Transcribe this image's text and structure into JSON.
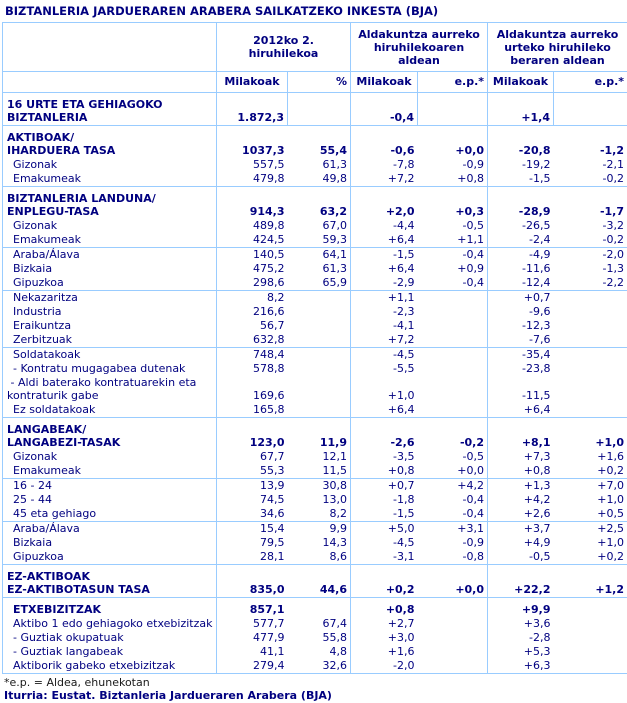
{
  "title": "BIZTANLERIA JARDUERAREN ARABERA SAILKATZEKO INKESTA (BJA)",
  "colors": {
    "text": "#000080",
    "grid": "#99CCFF",
    "background": "#FFFFFF",
    "footnote": "#1A1A1A"
  },
  "header": {
    "groups": [
      {
        "label": "2012ko 2.\nhiruhilekoa",
        "sub": [
          "Milakoak",
          "%"
        ]
      },
      {
        "label": "Aldakuntza aurreko\nhiruhilekoaren aldean",
        "sub": [
          "Milakoak",
          "e.p.*"
        ]
      },
      {
        "label": "Aldakuntza aurreko\nurteko hiruhileko\nberaren aldean",
        "sub": [
          "Milakoak",
          "e.p.*"
        ]
      }
    ]
  },
  "rows": [
    {
      "label": "16 URTE ETA GEHIAGOKO\nBIZTANLERIA",
      "indent": 0,
      "bold": true,
      "sep": false,
      "hdr": true,
      "cells": [
        "1.872,3",
        "",
        "-0,4",
        "",
        "+1,4",
        ""
      ]
    },
    {
      "label": "AKTIBOAK/\nIHARDUERA TASA",
      "indent": 0,
      "bold": true,
      "sep": true,
      "hdr": false,
      "cells": [
        "1037,3",
        "55,4",
        "-0,6",
        "+0,0",
        "-20,8",
        "-1,2"
      ]
    },
    {
      "label": "Gizonak",
      "indent": 1,
      "bold": false,
      "sep": false,
      "hdr": false,
      "cells": [
        "557,5",
        "61,3",
        "-7,8",
        "-0,9",
        "-19,2",
        "-2,1"
      ]
    },
    {
      "label": "Emakumeak",
      "indent": 1,
      "bold": false,
      "sep": false,
      "hdr": false,
      "cells": [
        "479,8",
        "49,8",
        "+7,2",
        "+0,8",
        "-1,5",
        "-0,2"
      ]
    },
    {
      "label": "BIZTANLERIA LANDUNA/\nENPLEGU-TASA",
      "indent": 0,
      "bold": true,
      "sep": true,
      "hdr": false,
      "cells": [
        "914,3",
        "63,2",
        "+2,0",
        "+0,3",
        "-28,9",
        "-1,7"
      ]
    },
    {
      "label": "Gizonak",
      "indent": 1,
      "bold": false,
      "sep": false,
      "hdr": false,
      "cells": [
        "489,8",
        "67,0",
        "-4,4",
        "-0,5",
        "-26,5",
        "-3,2"
      ]
    },
    {
      "label": "Emakumeak",
      "indent": 1,
      "bold": false,
      "sep": false,
      "hdr": false,
      "cells": [
        "424,5",
        "59,3",
        "+6,4",
        "+1,1",
        "-2,4",
        "-0,2"
      ]
    },
    {
      "label": "Araba/Álava",
      "indent": 1,
      "bold": false,
      "sep": true,
      "hdr": false,
      "cells": [
        "140,5",
        "64,1",
        "-1,5",
        "-0,4",
        "-4,9",
        "-2,0"
      ]
    },
    {
      "label": "Bizkaia",
      "indent": 1,
      "bold": false,
      "sep": false,
      "hdr": false,
      "cells": [
        "475,2",
        "61,3",
        "+6,4",
        "+0,9",
        "-11,6",
        "-1,3"
      ]
    },
    {
      "label": "Gipuzkoa",
      "indent": 1,
      "bold": false,
      "sep": false,
      "hdr": false,
      "cells": [
        "298,6",
        "65,9",
        "-2,9",
        "-0,4",
        "-12,4",
        "-2,2"
      ]
    },
    {
      "label": "Nekazaritza",
      "indent": 1,
      "bold": false,
      "sep": true,
      "hdr": false,
      "cells": [
        "8,2",
        "",
        "+1,1",
        "",
        "+0,7",
        ""
      ]
    },
    {
      "label": "Industria",
      "indent": 1,
      "bold": false,
      "sep": false,
      "hdr": false,
      "cells": [
        "216,6",
        "",
        "-2,3",
        "",
        "-9,6",
        ""
      ]
    },
    {
      "label": "Eraikuntza",
      "indent": 1,
      "bold": false,
      "sep": false,
      "hdr": false,
      "cells": [
        "56,7",
        "",
        "-4,1",
        "",
        "-12,3",
        ""
      ]
    },
    {
      "label": "Zerbitzuak",
      "indent": 1,
      "bold": false,
      "sep": false,
      "hdr": false,
      "cells": [
        "632,8",
        "",
        "+7,2",
        "",
        "-7,6",
        ""
      ]
    },
    {
      "label": "Soldatakoak",
      "indent": 1,
      "bold": false,
      "sep": true,
      "hdr": false,
      "cells": [
        "748,4",
        "",
        "-4,5",
        "",
        "-35,4",
        ""
      ]
    },
    {
      "label": "- Kontratu mugagabea dutenak",
      "indent": 1,
      "bold": false,
      "sep": false,
      "hdr": false,
      "cells": [
        "578,8",
        "",
        "-5,5",
        "",
        "-23,8",
        ""
      ]
    },
    {
      "label": " - Aldi baterako kontratuarekin eta\nkontraturik gabe",
      "indent": 0,
      "bold": false,
      "sep": false,
      "hdr": false,
      "cells": [
        "169,6",
        "",
        "+1,0",
        "",
        "-11,5",
        ""
      ]
    },
    {
      "label": "Ez soldatakoak",
      "indent": 1,
      "bold": false,
      "sep": false,
      "hdr": false,
      "cells": [
        "165,8",
        "",
        "+6,4",
        "",
        "+6,4",
        ""
      ]
    },
    {
      "label": "LANGABEAK/\nLANGABEZI-TASAK",
      "indent": 0,
      "bold": true,
      "sep": true,
      "hdr": false,
      "cells": [
        "123,0",
        "11,9",
        "-2,6",
        "-0,2",
        "+8,1",
        "+1,0"
      ]
    },
    {
      "label": "Gizonak",
      "indent": 1,
      "bold": false,
      "sep": false,
      "hdr": false,
      "cells": [
        "67,7",
        "12,1",
        "-3,5",
        "-0,5",
        "+7,3",
        "+1,6"
      ]
    },
    {
      "label": "Emakumeak",
      "indent": 1,
      "bold": false,
      "sep": false,
      "hdr": false,
      "cells": [
        "55,3",
        "11,5",
        "+0,8",
        "+0,0",
        "+0,8",
        "+0,2"
      ]
    },
    {
      "label": "16 - 24",
      "indent": 1,
      "bold": false,
      "sep": true,
      "hdr": false,
      "cells": [
        "13,9",
        "30,8",
        "+0,7",
        "+4,2",
        "+1,3",
        "+7,0"
      ]
    },
    {
      "label": "25 - 44",
      "indent": 1,
      "bold": false,
      "sep": false,
      "hdr": false,
      "cells": [
        "74,5",
        "13,0",
        "-1,8",
        "-0,4",
        "+4,2",
        "+1,0"
      ]
    },
    {
      "label": "45 eta gehiago",
      "indent": 1,
      "bold": false,
      "sep": false,
      "hdr": false,
      "cells": [
        "34,6",
        "8,2",
        "-1,5",
        "-0,4",
        "+2,6",
        "+0,5"
      ]
    },
    {
      "label": "Araba/Álava",
      "indent": 1,
      "bold": false,
      "sep": true,
      "hdr": false,
      "cells": [
        "15,4",
        "9,9",
        "+5,0",
        "+3,1",
        "+3,7",
        "+2,5"
      ]
    },
    {
      "label": "Bizkaia",
      "indent": 1,
      "bold": false,
      "sep": false,
      "hdr": false,
      "cells": [
        "79,5",
        "14,3",
        "-4,5",
        "-0,9",
        "+4,9",
        "+1,0"
      ]
    },
    {
      "label": "Gipuzkoa",
      "indent": 1,
      "bold": false,
      "sep": false,
      "hdr": false,
      "cells": [
        "28,1",
        "8,6",
        "-3,1",
        "-0,8",
        "-0,5",
        "+0,2"
      ]
    },
    {
      "label": "EZ-AKTIBOAK\nEZ-AKTIBOTASUN TASA",
      "indent": 0,
      "bold": true,
      "sep": true,
      "hdr": false,
      "cells": [
        "835,0",
        "44,6",
        "+0,2",
        "+0,0",
        "+22,2",
        "+1,2"
      ]
    },
    {
      "label": "ETXEBIZITZAK",
      "indent": 1,
      "bold": true,
      "sep": true,
      "hdr": false,
      "cells": [
        "857,1",
        "",
        "+0,8",
        "",
        "+9,9",
        ""
      ]
    },
    {
      "label": "Aktibo 1 edo gehiagoko etxebizitzak",
      "indent": 1,
      "bold": false,
      "sep": false,
      "hdr": false,
      "cells": [
        "577,7",
        "67,4",
        "+2,7",
        "",
        "+3,6",
        ""
      ]
    },
    {
      "label": "- Guztiak okupatuak",
      "indent": 1,
      "bold": false,
      "sep": false,
      "hdr": false,
      "cells": [
        "477,9",
        "55,8",
        "+3,0",
        "",
        "-2,8",
        ""
      ]
    },
    {
      "label": "- Guztiak langabeak",
      "indent": 1,
      "bold": false,
      "sep": false,
      "hdr": false,
      "cells": [
        "41,1",
        "4,8",
        "+1,6",
        "",
        "+5,3",
        ""
      ]
    },
    {
      "label": "Aktiborik gabeko etxebizitzak",
      "indent": 1,
      "bold": false,
      "sep": false,
      "hdr": false,
      "cells": [
        "279,4",
        "32,6",
        "-2,0",
        "",
        "+6,3",
        ""
      ]
    }
  ],
  "footnotes": {
    "note": "*e.p. = Aldea, ehunekotan",
    "source": "Iturria: Eustat. Biztanleria Jardueraren Arabera (BJA)"
  }
}
